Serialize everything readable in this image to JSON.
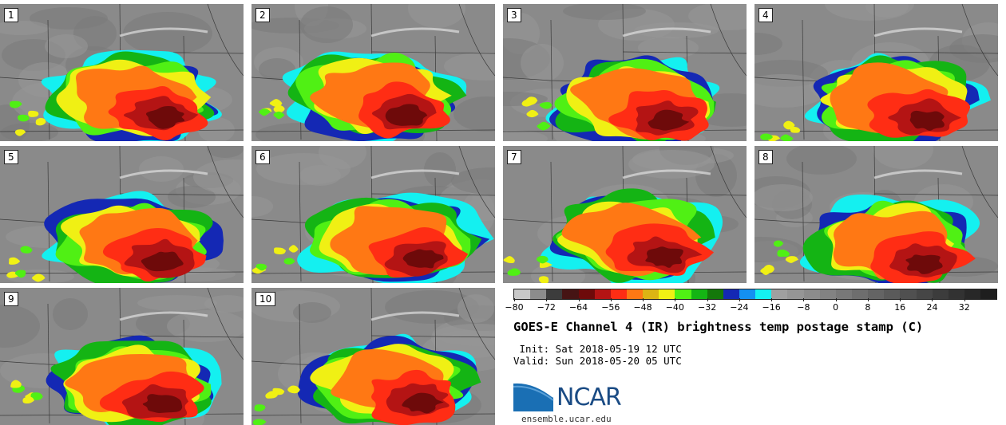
{
  "panels": [
    {
      "label": "1"
    },
    {
      "label": "2"
    },
    {
      "label": "3"
    },
    {
      "label": "4"
    },
    {
      "label": "5"
    },
    {
      "label": "6"
    },
    {
      "label": "7"
    },
    {
      "label": "8"
    },
    {
      "label": "9"
    },
    {
      "label": "10"
    }
  ],
  "colorbar": {
    "colors": [
      "#c8c8c8",
      "#8c8c8c",
      "#3c3c3c",
      "#461414",
      "#6e0a0a",
      "#b41414",
      "#ff2d14",
      "#ff7814",
      "#dcb414",
      "#f0f014",
      "#50f014",
      "#14b414",
      "#14780a",
      "#1428b4",
      "#1490f0",
      "#14f0f0",
      "#a0a0a0",
      "#969696",
      "#8c8c8c",
      "#828282",
      "#787878",
      "#6e6e6e",
      "#646464",
      "#5a5a5a",
      "#505050",
      "#464646",
      "#3c3c3c",
      "#323232",
      "#282828",
      "#1e1e1e"
    ],
    "tick_labels": [
      "−80",
      "−72",
      "−64",
      "−56",
      "−48",
      "−40",
      "−32",
      "−24",
      "−16",
      "−8",
      "0",
      "8",
      "16",
      "24",
      "32"
    ]
  },
  "title": "GOES-E Channel 4 (IR) brightness temp postage stamp (C)",
  "init": " Init: Sat 2018-05-19 12 UTC",
  "valid": "Valid: Sun 2018-05-20 05 UTC",
  "logo": {
    "text": "NCAR",
    "color": "#1a4b84"
  },
  "website": "ensemble.ucar.edu"
}
